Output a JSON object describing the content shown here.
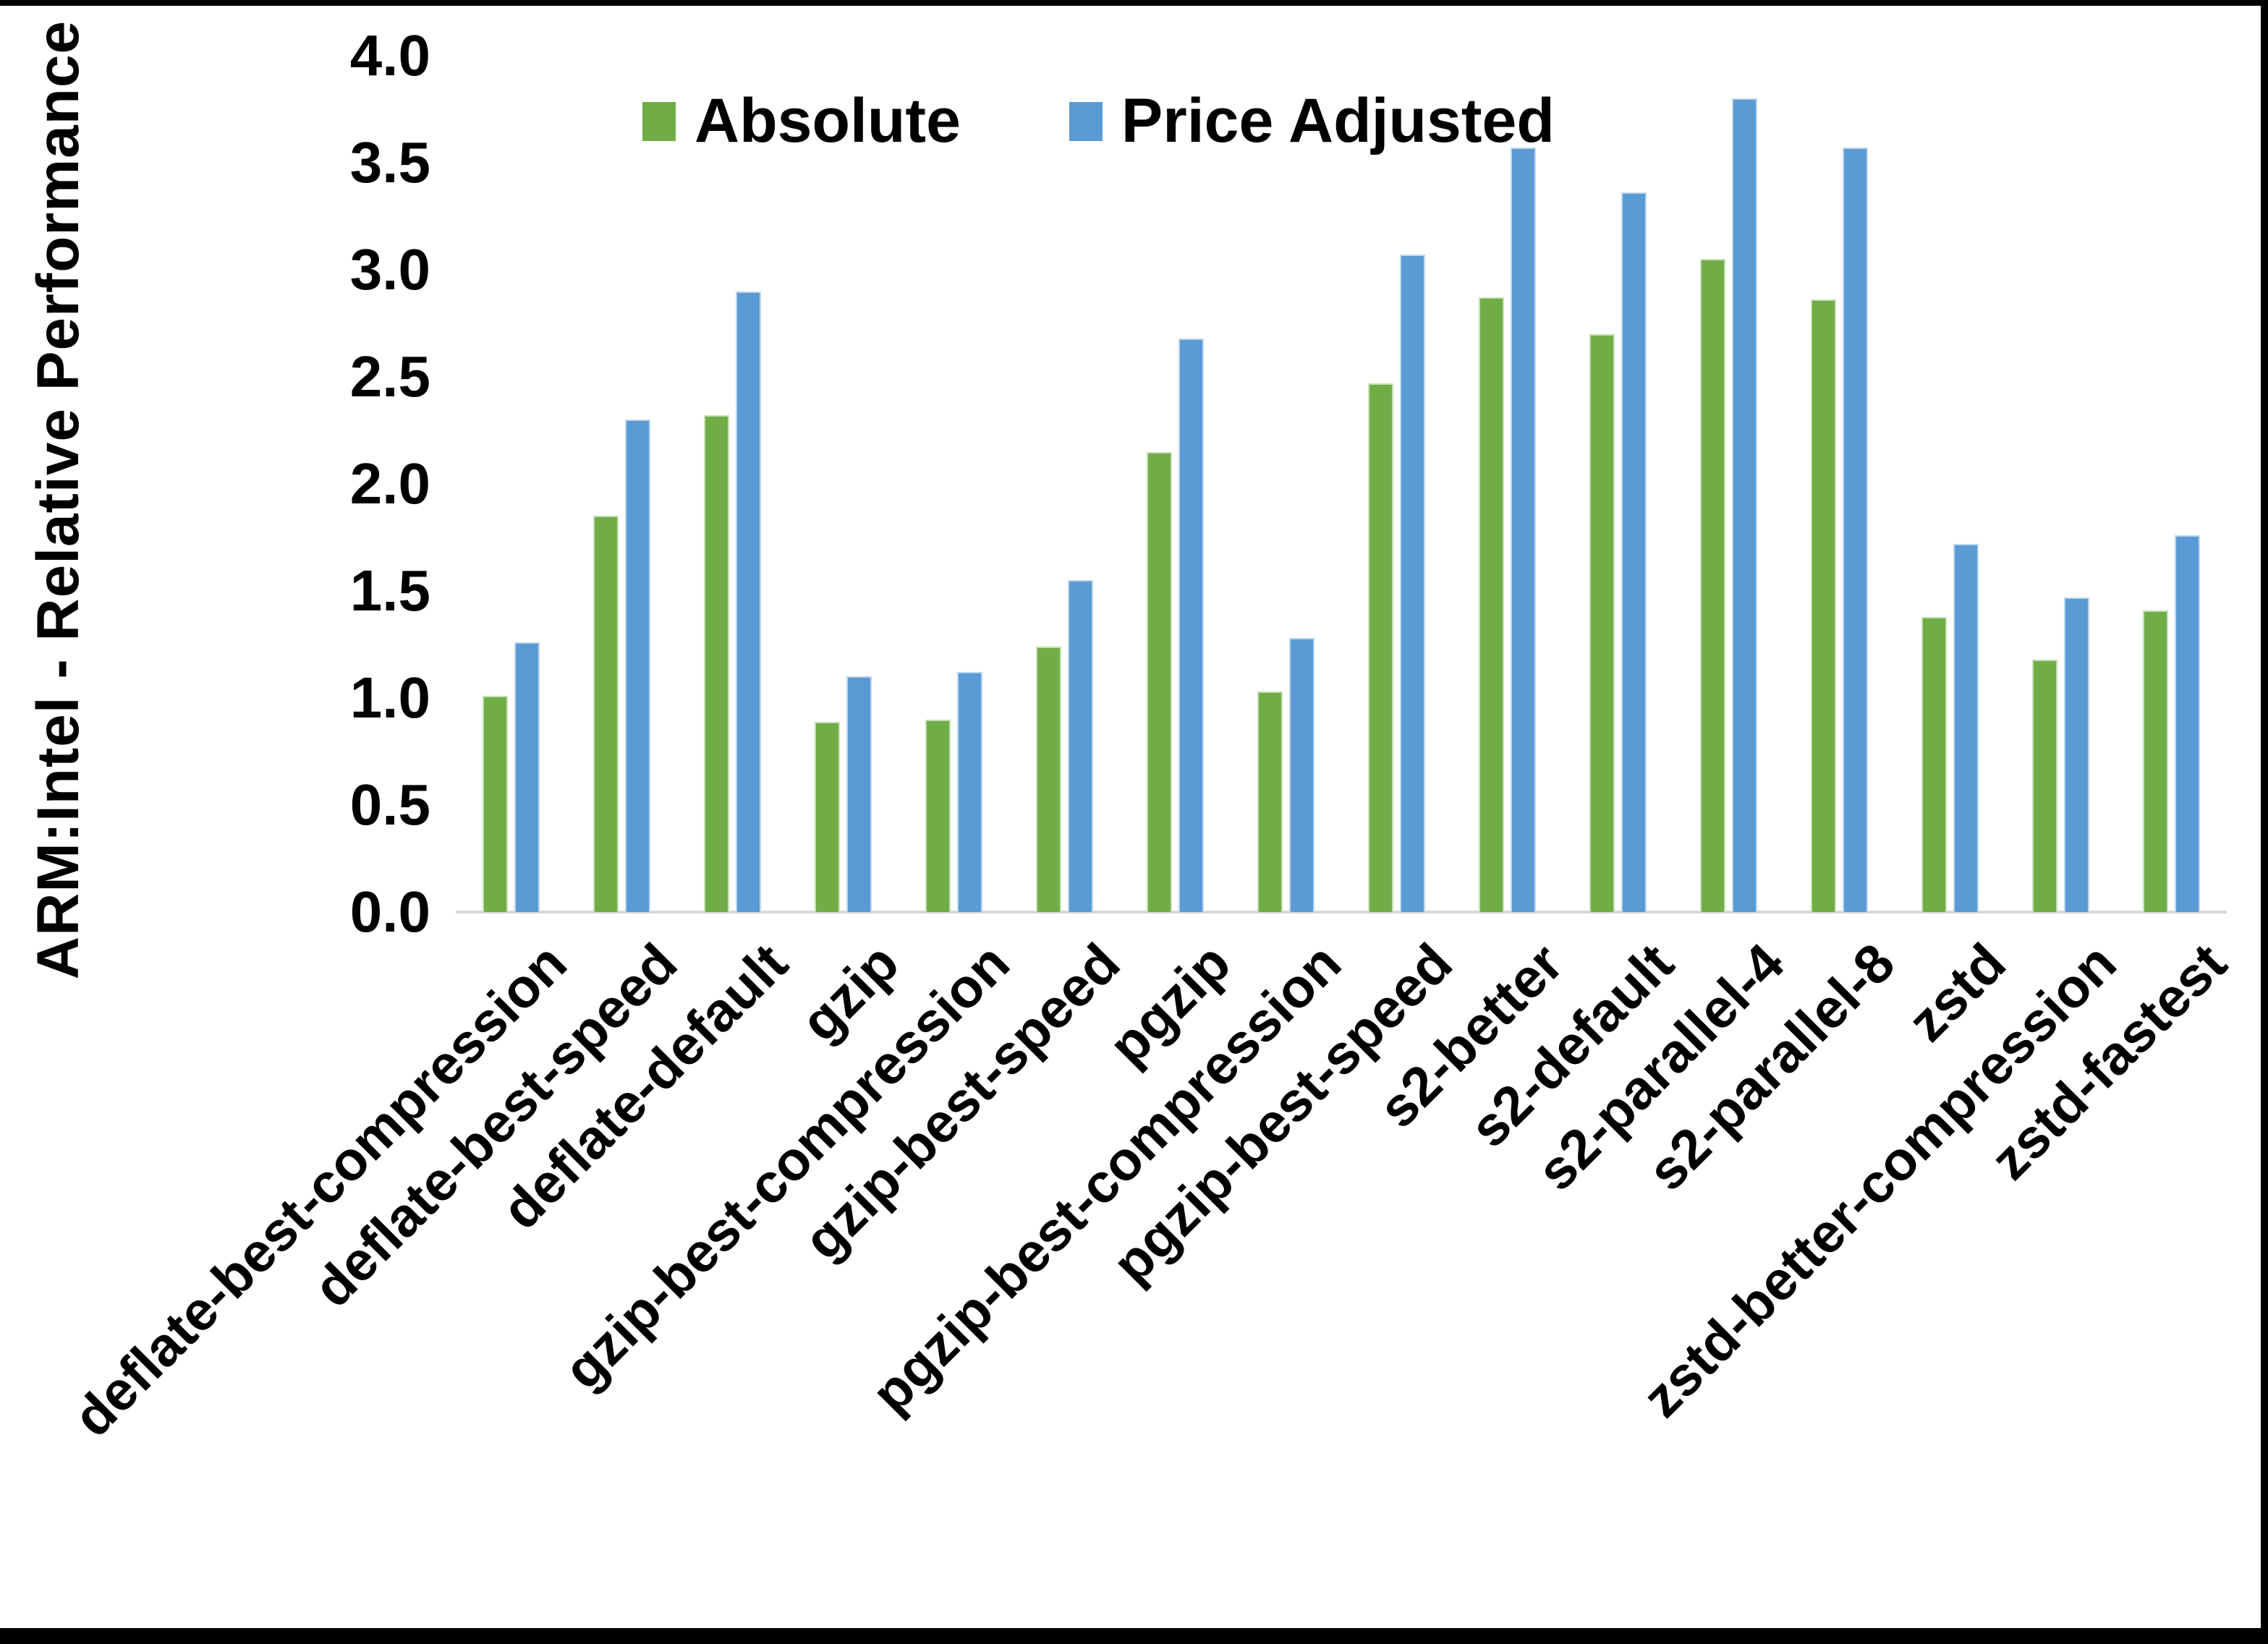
{
  "frame": {
    "border_color": "#000000"
  },
  "y_axis": {
    "title": "ARM:Intel - Relative Performance",
    "ticks": [
      "0.0",
      "0.5",
      "1.0",
      "1.5",
      "2.0",
      "2.5",
      "3.0",
      "3.5",
      "4.0"
    ]
  },
  "legend": [
    {
      "label": "Absolute",
      "color": "#70AD47"
    },
    {
      "label": "Price Adjusted",
      "color": "#5B9BD5"
    }
  ],
  "chart_data": {
    "type": "bar",
    "title": "",
    "categories": [
      "deflate-best-compression",
      "deflate-best-speed",
      "deflate-default",
      "gzip",
      "gzip-best-compression",
      "gzip-best-speed",
      "pgzip",
      "pgzip-best-compression",
      "pgzip-best-speed",
      "s2-better",
      "s2-default",
      "s2-parallel-4",
      "s2-parallel-8",
      "zstd",
      "zstd-better-compression",
      "zstd-fastest"
    ],
    "series": [
      {
        "name": "Absolute",
        "color": "#70AD47",
        "values": [
          1.01,
          1.85,
          2.32,
          0.89,
          0.9,
          1.24,
          2.15,
          1.03,
          2.47,
          2.87,
          2.7,
          3.05,
          2.86,
          1.38,
          1.18,
          1.41
        ]
      },
      {
        "name": "Price Adjusted",
        "color": "#5B9BD5",
        "values": [
          1.26,
          2.3,
          2.9,
          1.1,
          1.12,
          1.55,
          2.68,
          1.28,
          3.07,
          3.57,
          3.36,
          3.8,
          3.57,
          1.72,
          1.47,
          1.76
        ]
      }
    ],
    "xlabel": "",
    "ylabel": "ARM:Intel - Relative Performance",
    "ylim": [
      0.0,
      4.0
    ],
    "ytick_step": 0.5,
    "grid": false,
    "legend_position": "top-center",
    "x_label_rotation_deg": 45
  }
}
